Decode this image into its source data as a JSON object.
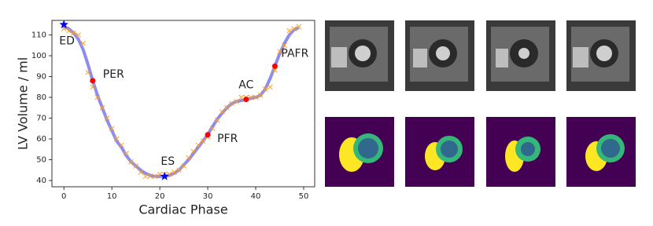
{
  "chart_data": {
    "type": "line",
    "xlabel": "Cardiac Phase",
    "ylabel": "LV Volume / ml",
    "x": [
      0,
      1,
      2,
      3,
      4,
      5,
      6,
      7,
      8,
      9,
      10,
      11,
      12,
      13,
      14,
      15,
      16,
      17,
      18,
      19,
      20,
      21,
      22,
      23,
      24,
      25,
      26,
      27,
      28,
      29,
      30,
      31,
      32,
      33,
      34,
      35,
      36,
      37,
      38,
      39,
      40,
      41,
      42,
      43,
      44,
      45,
      46,
      47,
      48,
      49
    ],
    "series": [
      {
        "style": "line",
        "color": "#6f6ff0",
        "values": [
          114,
          113,
          111,
          108,
          103,
          96,
          88,
          81,
          75,
          69,
          64,
          59,
          56,
          52,
          49,
          47,
          45,
          43.5,
          42.5,
          42,
          42,
          42,
          42.5,
          43.5,
          45,
          47.5,
          50,
          53,
          56,
          59,
          62,
          66,
          69.5,
          72.5,
          75,
          77,
          78,
          78.5,
          79,
          79.5,
          80,
          81,
          84,
          89,
          95,
          101,
          106,
          110,
          112.5,
          113.5
        ]
      },
      {
        "style": "cross",
        "color": "#ff9f1c",
        "values": [
          113,
          112,
          111,
          110,
          106,
          92,
          85,
          80,
          75,
          70,
          65,
          60,
          57,
          53,
          49,
          47,
          44,
          42,
          42,
          42,
          43,
          43,
          43,
          44,
          45,
          47,
          51,
          54,
          57,
          59,
          61,
          65,
          69,
          73,
          75,
          77,
          78,
          80,
          80,
          80,
          80,
          81,
          84,
          85,
          93,
          102,
          105,
          112,
          113,
          114
        ]
      }
    ],
    "annotations": [
      {
        "text": "ED",
        "x": 0,
        "y": 115,
        "marker": "star",
        "color": "#0000ff"
      },
      {
        "text": "PER",
        "x": 6,
        "y": 88,
        "marker": "circle",
        "color": "#ff0000"
      },
      {
        "text": "ES",
        "x": 21,
        "y": 42,
        "marker": "star",
        "color": "#0000ff"
      },
      {
        "text": "PFR",
        "x": 30,
        "y": 62,
        "marker": "circle",
        "color": "#ff0000"
      },
      {
        "text": "AC",
        "x": 38,
        "y": 79,
        "marker": "circle",
        "color": "#ff0000"
      },
      {
        "text": "PAFR",
        "x": 44,
        "y": 95,
        "marker": "circle",
        "color": "#ff0000"
      }
    ],
    "xlim": [
      -2.5,
      52.3
    ],
    "ylim": [
      37,
      117
    ],
    "xticks": [
      0,
      10,
      20,
      30,
      40,
      50
    ],
    "yticks": [
      40,
      50,
      60,
      70,
      80,
      90,
      100,
      110
    ]
  }
}
